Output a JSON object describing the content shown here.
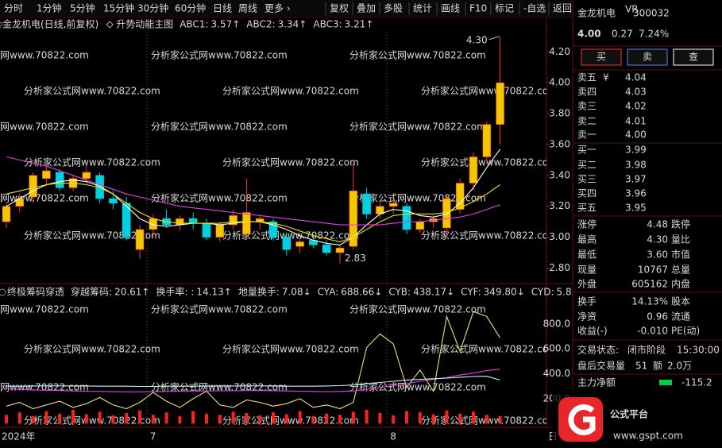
{
  "toolbar": {
    "periods": [
      {
        "label": "分时"
      },
      {
        "label": "1分钟"
      },
      {
        "label": "5分钟"
      },
      {
        "label": "15分钟"
      },
      {
        "label": "30分钟"
      },
      {
        "label": "60分钟"
      },
      {
        "label": "日线",
        "selected": true
      },
      {
        "label": "周线"
      },
      {
        "label": "更多 ›"
      }
    ],
    "tools": [
      "复权",
      "叠加",
      "多股",
      "统计",
      "画线",
      "F10",
      "标记",
      "-自选",
      "返回"
    ]
  },
  "watermark": "分析家公式网www.70822.com",
  "chart_data": [
    {
      "type": "candlestick",
      "title": "金龙机电(日线,前复权)",
      "subtitle": "升势动能主图",
      "up_color": "#f0c800",
      "down_color": "#00d0e0",
      "open": [
        3.1,
        3.2,
        3.26,
        3.38,
        3.42,
        3.32,
        3.38,
        3.4,
        3.25,
        3.22,
        2.92,
        3.05,
        3.12,
        3.08,
        3.12,
        3.09,
        3.0,
        3.08,
        3.02,
        3.1,
        3.1,
        3.0,
        2.94,
        2.98,
        2.95,
        2.9,
        2.94,
        3.28,
        3.15,
        3.2,
        3.2,
        3.05,
        3.1,
        3.06,
        3.18,
        3.35,
        3.52,
        3.73
      ],
      "high": [
        3.22,
        3.28,
        3.42,
        3.46,
        3.44,
        3.4,
        3.47,
        3.42,
        3.3,
        3.26,
        3.08,
        3.15,
        3.18,
        3.14,
        3.16,
        3.12,
        3.1,
        3.18,
        3.38,
        3.14,
        3.12,
        3.02,
        2.99,
        3.02,
        2.98,
        2.95,
        3.48,
        3.32,
        3.24,
        3.25,
        3.22,
        3.12,
        3.14,
        3.28,
        3.38,
        3.55,
        3.75,
        4.3
      ],
      "low": [
        3.06,
        3.16,
        3.22,
        3.33,
        3.3,
        3.3,
        3.34,
        3.22,
        3.18,
        2.98,
        2.86,
        3.0,
        3.06,
        3.04,
        3.05,
        2.98,
        2.97,
        3.05,
        3.0,
        3.05,
        2.98,
        2.88,
        2.9,
        2.93,
        2.88,
        2.83,
        2.92,
        3.12,
        3.12,
        3.15,
        3.02,
        3.03,
        3.06,
        3.0,
        3.15,
        3.3,
        3.48,
        3.6
      ],
      "close": [
        3.2,
        3.25,
        3.4,
        3.43,
        3.32,
        3.38,
        3.42,
        3.25,
        3.22,
        3.0,
        3.05,
        3.12,
        3.08,
        3.12,
        3.09,
        3.0,
        3.08,
        3.14,
        3.16,
        3.12,
        3.0,
        2.92,
        2.97,
        2.95,
        2.9,
        2.93,
        3.3,
        3.15,
        3.2,
        3.22,
        3.05,
        3.1,
        3.12,
        3.25,
        3.35,
        3.52,
        3.73,
        4.0
      ],
      "series": [
        {
          "name": "ABC1:",
          "color": "#ffffff",
          "trend": "↑",
          "values": [
            3.2,
            3.25,
            3.3,
            3.34,
            3.36,
            3.37,
            3.36,
            3.33,
            3.28,
            3.2,
            3.12,
            3.08,
            3.07,
            3.08,
            3.09,
            3.09,
            3.08,
            3.09,
            3.1,
            3.1,
            3.08,
            3.05,
            3.01,
            2.98,
            2.96,
            2.95,
            3.0,
            3.08,
            3.15,
            3.18,
            3.17,
            3.14,
            3.13,
            3.15,
            3.22,
            3.32,
            3.45,
            3.57
          ]
        },
        {
          "name": "ABC2:",
          "color": "#f0e000",
          "trend": "↑",
          "values": [
            3.28,
            3.3,
            3.32,
            3.34,
            3.35,
            3.35,
            3.34,
            3.32,
            3.28,
            3.22,
            3.16,
            3.12,
            3.1,
            3.09,
            3.09,
            3.09,
            3.09,
            3.1,
            3.1,
            3.1,
            3.09,
            3.07,
            3.04,
            3.01,
            2.99,
            2.97,
            3.0,
            3.05,
            3.1,
            3.14,
            3.15,
            3.15,
            3.15,
            3.16,
            3.19,
            3.23,
            3.28,
            3.34
          ]
        },
        {
          "name": "ABC3:",
          "color": "#e040e0",
          "trend": "↑",
          "values": [
            3.52,
            3.5,
            3.48,
            3.46,
            3.43,
            3.4,
            3.37,
            3.34,
            3.31,
            3.28,
            3.26,
            3.24,
            3.22,
            3.2,
            3.19,
            3.18,
            3.17,
            3.16,
            3.15,
            3.14,
            3.13,
            3.12,
            3.11,
            3.1,
            3.09,
            3.08,
            3.08,
            3.08,
            3.08,
            3.09,
            3.1,
            3.1,
            3.11,
            3.12,
            3.13,
            3.15,
            3.18,
            3.21
          ]
        }
      ],
      "annotations": [
        {
          "value": 4.3,
          "label": "4.30"
        },
        {
          "value": 2.83,
          "label": "2.83"
        }
      ],
      "ylim": [
        2.71,
        4.33
      ],
      "yticks": [
        {
          "value": 2.8,
          "label": "2.80"
        },
        {
          "value": 3.0,
          "label": "3.00"
        },
        {
          "value": 3.2,
          "label": "3.20"
        },
        {
          "value": 3.4,
          "label": "3.40"
        },
        {
          "value": 3.6,
          "label": "3.60"
        },
        {
          "value": 3.8,
          "label": "3.80"
        },
        {
          "value": 4.0,
          "label": "4.00"
        },
        {
          "value": 4.2,
          "label": "4.20"
        }
      ]
    },
    {
      "type": "line",
      "title": "终极筹码穿透",
      "readouts": [
        {
          "name": "穿越筹码:",
          "value": 20.61,
          "trend": "↑",
          "color": "#ffffff"
        },
        {
          "name": "换手率: :",
          "value": 14.13,
          "trend": "↑",
          "color": "#ff50ff"
        },
        {
          "name": "地量换手:",
          "value": 7.08,
          "trend": "↓",
          "color": "#ff3030"
        },
        {
          "name": "CYA:",
          "value": 688.66,
          "trend": "↓",
          "color": "#f0e000"
        },
        {
          "name": "CYB:",
          "value": 438.17,
          "trend": "↓",
          "color": "#e040e0"
        },
        {
          "name": "CYF:",
          "value": 349.8,
          "label": "349.80",
          "trend": "↓",
          "color": "#ffffff"
        },
        {
          "name": "CYD:",
          "value": 5.8,
          "color": "#f0e000"
        }
      ],
      "categories": [
        "2024年",
        null,
        null,
        null,
        null,
        null,
        null,
        null,
        null,
        null,
        null,
        "7",
        null,
        null,
        null,
        null,
        null,
        null,
        null,
        null,
        null,
        null,
        null,
        null,
        null,
        null,
        null,
        null,
        null,
        "8",
        null,
        null,
        null,
        null,
        null,
        null,
        null,
        null
      ],
      "series": [
        {
          "name": "CYA",
          "color": "#f0e070",
          "values": [
            140,
            170,
            120,
            150,
            180,
            130,
            160,
            210,
            150,
            120,
            170,
            250,
            180,
            130,
            200,
            260,
            150,
            130,
            190,
            170,
            140,
            160,
            200,
            130,
            150,
            120,
            170,
            610,
            720,
            640,
            290,
            430,
            260,
            860,
            580,
            900,
            860,
            688.66
          ]
        },
        {
          "name": "CYB",
          "color": "#e040e0",
          "values": [
            280,
            275,
            270,
            268,
            265,
            262,
            260,
            258,
            256,
            255,
            255,
            256,
            258,
            260,
            262,
            262,
            263,
            264,
            265,
            265,
            264,
            262,
            260,
            258,
            256,
            258,
            262,
            275,
            290,
            305,
            320,
            340,
            355,
            370,
            390,
            405,
            425,
            438.17
          ]
        },
        {
          "name": "CYF",
          "color": "#c8f4ff",
          "values": [
            300,
            300,
            302,
            303,
            303,
            302,
            302,
            300,
            300,
            300,
            298,
            298,
            300,
            300,
            300,
            301,
            302,
            302,
            303,
            303,
            302,
            300,
            300,
            300,
            302,
            305,
            310,
            320,
            330,
            340,
            350,
            355,
            360,
            365,
            372,
            378,
            380,
            349.8
          ]
        }
      ],
      "bars": {
        "color": "#ff2020",
        "values": [
          70,
          90,
          60,
          100,
          80,
          110,
          75,
          95,
          65,
          85,
          105,
          70,
          90,
          60,
          100,
          80,
          70,
          95,
          85,
          65,
          90,
          75,
          100,
          60,
          80,
          70,
          95,
          110,
          85,
          65,
          100,
          90,
          75,
          105,
          80,
          95,
          70,
          60
        ]
      },
      "period_label": "日",
      "ylim": [
        -30,
        990
      ],
      "yticks": [
        {
          "value": 200,
          "label": "200.0"
        },
        {
          "value": 400,
          "label": "400.0"
        },
        {
          "value": 600,
          "label": "600.0"
        },
        {
          "value": 800,
          "label": "800.0"
        }
      ]
    }
  ],
  "quote": {
    "name": "金龙机电",
    "tag": "VR",
    "code": "300032",
    "price": {
      "value": 4,
      "label": "4.00"
    },
    "change": 0.27,
    "change_pct": {
      "value": 7.24,
      "label": "7.24%"
    },
    "buttons": [
      {
        "label": "买",
        "color": "#ff3030"
      },
      {
        "label": "卖",
        "color": "#4a8cff"
      },
      {
        "label": "查",
        "color": "#ffffff"
      }
    ],
    "asks": [
      {
        "label": "卖五",
        "currency": "¥",
        "price": 4.04
      },
      {
        "label": "卖四",
        "price": 4.03
      },
      {
        "label": "卖三",
        "price": 4.02
      },
      {
        "label": "卖二",
        "price": 4.01
      },
      {
        "label": "卖一",
        "price": {
          "value": 4,
          "label": "4.00"
        }
      }
    ],
    "bids": [
      {
        "label": "买一",
        "price": 3.99
      },
      {
        "label": "买二",
        "price": 3.98
      },
      {
        "label": "买三",
        "price": 3.97
      },
      {
        "label": "买四",
        "price": 3.96
      },
      {
        "label": "买五",
        "price": 3.95
      }
    ],
    "stats": [
      [
        "涨停",
        {
          "value": 4.48,
          "color": "#ff3030"
        },
        "跌停"
      ],
      [
        "最高",
        {
          "value": 4.3,
          "label": "4.30",
          "color": "#ff3030"
        },
        "量比"
      ],
      [
        "最低",
        {
          "value": 3.6,
          "label": "3.60",
          "color": "#00d040"
        },
        "市值"
      ],
      [
        "现量",
        {
          "value": 10767,
          "color": "#ff40ff"
        },
        "总量"
      ],
      [
        "外盘",
        {
          "value": 605162,
          "color": "#ff3030"
        },
        "内盘"
      ]
    ],
    "stats2": [
      [
        "换手",
        {
          "value": 14.13,
          "label": "14.13%"
        },
        "股本"
      ],
      [
        "净资",
        0.96,
        "流通"
      ],
      [
        "收益(-)",
        {
          "value": -0.01,
          "label": "-0.010"
        },
        "PE(动)"
      ]
    ],
    "status": [
      [
        "交易状态:",
        "闭市阶段",
        "15:30:00"
      ],
      [
        "盘后交易量",
        51,
        "额",
        {
          "value": 2,
          "label": "2.0万"
        }
      ]
    ],
    "flow": [
      "主力净额",
      {
        "value": -115.2,
        "color": "#00d040"
      }
    ]
  },
  "logo": {
    "name": "公式平台",
    "url": "www.gspt.com"
  }
}
